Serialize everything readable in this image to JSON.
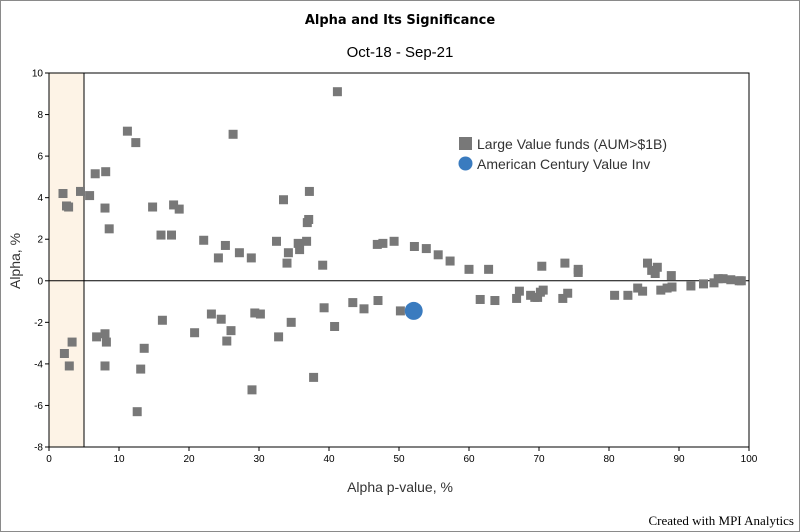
{
  "chart_data": {
    "type": "scatter",
    "title": "Alpha and Its Significance",
    "subtitle": "Oct-18 - Sep-21",
    "xlabel": "Alpha p-value, %",
    "ylabel": "Alpha, %",
    "xlim": [
      0,
      100
    ],
    "ylim": [
      -8,
      10
    ],
    "x_ticks": [
      0,
      10,
      20,
      30,
      40,
      50,
      60,
      70,
      80,
      90,
      100
    ],
    "y_ticks": [
      -8,
      -6,
      -4,
      -2,
      0,
      2,
      4,
      6,
      8,
      10
    ],
    "x_tick_labels": [
      "0",
      "10",
      "20",
      "30",
      "40",
      "50",
      "60",
      "70",
      "80",
      "90",
      "100"
    ],
    "y_tick_labels": [
      "-8",
      "-6",
      "-4",
      "-2",
      "0",
      "2",
      "4",
      "6",
      "8",
      "10"
    ],
    "significance_band_x": [
      0,
      5
    ],
    "legend_position": "top-right (inside plot)",
    "colors": {
      "funds": "#787878",
      "highlight": "#3a7bbf",
      "band_fill": "#fdf3e6",
      "axis": "#000000"
    },
    "series": [
      {
        "name": "Large Value funds (AUM>$1B)",
        "marker": "square",
        "points": [
          [
            2,
            4.2
          ],
          [
            2.5,
            3.6
          ],
          [
            2.8,
            3.55
          ],
          [
            4.5,
            4.3
          ],
          [
            5.8,
            4.1
          ],
          [
            6.6,
            5.15
          ],
          [
            8.1,
            5.25
          ],
          [
            8.0,
            3.5
          ],
          [
            8.6,
            2.5
          ],
          [
            11.2,
            7.2
          ],
          [
            12.4,
            6.65
          ],
          [
            14.8,
            3.55
          ],
          [
            16.0,
            2.2
          ],
          [
            17.5,
            2.2
          ],
          [
            17.8,
            3.65
          ],
          [
            18.6,
            3.45
          ],
          [
            22.1,
            1.95
          ],
          [
            24.2,
            1.1
          ],
          [
            25.2,
            1.7
          ],
          [
            26.3,
            7.05
          ],
          [
            27.2,
            1.35
          ],
          [
            28.9,
            1.1
          ],
          [
            32.5,
            1.9
          ],
          [
            33.5,
            3.9
          ],
          [
            34.0,
            0.85
          ],
          [
            34.2,
            1.35
          ],
          [
            35.6,
            1.8
          ],
          [
            35.8,
            1.5
          ],
          [
            36.8,
            1.9
          ],
          [
            36.9,
            2.8
          ],
          [
            37.1,
            2.95
          ],
          [
            37.2,
            4.3
          ],
          [
            39.1,
            0.75
          ],
          [
            41.2,
            9.1
          ],
          [
            46.9,
            1.75
          ],
          [
            47.7,
            1.8
          ],
          [
            49.3,
            1.9
          ],
          [
            52.2,
            1.65
          ],
          [
            53.9,
            1.55
          ],
          [
            55.6,
            1.25
          ],
          [
            57.3,
            0.95
          ],
          [
            60.0,
            0.55
          ],
          [
            62.8,
            0.55
          ],
          [
            70.4,
            0.7
          ],
          [
            73.7,
            0.85
          ],
          [
            75.6,
            0.55
          ],
          [
            75.6,
            0.4
          ],
          [
            85.5,
            0.85
          ],
          [
            86.1,
            0.5
          ],
          [
            86.6,
            0.35
          ],
          [
            86.9,
            0.65
          ],
          [
            88.9,
            0.25
          ],
          [
            2.2,
            -3.5
          ],
          [
            2.9,
            -4.1
          ],
          [
            3.3,
            -2.95
          ],
          [
            6.8,
            -2.7
          ],
          [
            8.0,
            -2.55
          ],
          [
            8.2,
            -2.95
          ],
          [
            8.0,
            -4.1
          ],
          [
            12.6,
            -6.3
          ],
          [
            13.1,
            -4.25
          ],
          [
            13.6,
            -3.25
          ],
          [
            16.2,
            -1.9
          ],
          [
            20.8,
            -2.5
          ],
          [
            23.2,
            -1.6
          ],
          [
            24.6,
            -1.85
          ],
          [
            25.4,
            -2.9
          ],
          [
            26.0,
            -2.4
          ],
          [
            29.0,
            -5.25
          ],
          [
            29.4,
            -1.55
          ],
          [
            30.2,
            -1.6
          ],
          [
            32.8,
            -2.7
          ],
          [
            34.6,
            -2.0
          ],
          [
            37.8,
            -4.65
          ],
          [
            39.3,
            -1.3
          ],
          [
            40.8,
            -2.2
          ],
          [
            43.4,
            -1.05
          ],
          [
            45.0,
            -1.35
          ],
          [
            47.0,
            -0.95
          ],
          [
            50.2,
            -1.45
          ],
          [
            61.6,
            -0.9
          ],
          [
            63.7,
            -0.95
          ],
          [
            66.8,
            -0.85
          ],
          [
            67.2,
            -0.5
          ],
          [
            68.8,
            -0.7
          ],
          [
            69.4,
            -0.8
          ],
          [
            69.8,
            -0.8
          ],
          [
            70.2,
            -0.55
          ],
          [
            70.6,
            -0.45
          ],
          [
            73.4,
            -0.85
          ],
          [
            74.1,
            -0.6
          ],
          [
            80.8,
            -0.7
          ],
          [
            82.7,
            -0.7
          ],
          [
            84.1,
            -0.35
          ],
          [
            84.8,
            -0.5
          ],
          [
            87.4,
            -0.45
          ],
          [
            88.3,
            -0.35
          ],
          [
            89.0,
            -0.3
          ],
          [
            91.7,
            -0.25
          ],
          [
            93.5,
            -0.15
          ],
          [
            95.0,
            -0.1
          ],
          [
            95.6,
            0.1
          ],
          [
            96.3,
            0.1
          ],
          [
            97.4,
            0.05
          ],
          [
            98.6,
            0.0
          ],
          [
            98.9,
            0.0
          ]
        ]
      },
      {
        "name": "American Century Value Inv",
        "marker": "circle",
        "points": [
          [
            52.1,
            -1.45
          ]
        ]
      }
    ]
  },
  "footer": {
    "credit": "Created with MPI Analytics"
  }
}
